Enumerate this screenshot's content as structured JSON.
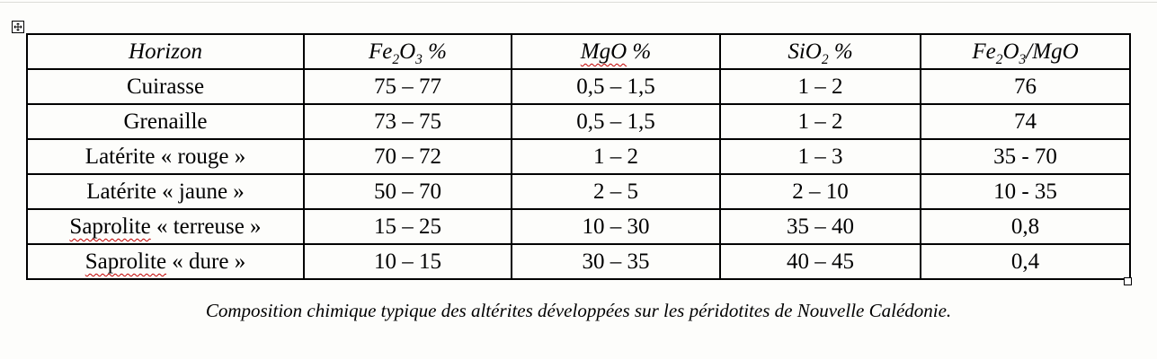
{
  "table": {
    "headers": [
      "Horizon",
      "Fe2O3 %",
      "MgO %",
      "SiO2 %",
      "Fe2O3/MgO"
    ],
    "rows": [
      {
        "cells": [
          "Cuirasse",
          "75 – 77",
          "0,5 – 1,5",
          "1 – 2",
          "76"
        ]
      },
      {
        "cells": [
          "Grenaille",
          "73 – 75",
          "0,5 – 1,5",
          "1 – 2",
          "74"
        ]
      },
      {
        "cells": [
          "Latérite « rouge »",
          "70 – 72",
          "1 – 2",
          "1 – 3",
          "35 - 70"
        ]
      },
      {
        "cells": [
          "Latérite « jaune »",
          "50 – 70",
          "2 – 5",
          "2 – 10",
          "10 - 35"
        ]
      },
      {
        "cells": [
          "Saprolite « terreuse »",
          "15 – 25",
          "10 – 30",
          "35 – 40",
          "0,8"
        ]
      },
      {
        "cells": [
          "Saprolite « dure »",
          "10 – 15",
          "30 – 35",
          "40 – 45",
          "0,4"
        ]
      }
    ],
    "border_color": "#000000"
  },
  "spellcheck": {
    "color": "#c00000",
    "marks": [
      {
        "path": "table.headers.2",
        "word": "MgO"
      },
      {
        "path": "table.rows.4.cells.0",
        "word": "Saprolite"
      },
      {
        "path": "table.rows.5.cells.0",
        "word": "Saprolite"
      }
    ]
  },
  "caption": "Composition chimique typique des altérites développées sur les péridotites de Nouvelle Calédonie.",
  "icons": {
    "move_handle": "✥",
    "resize_handle": "▫"
  }
}
